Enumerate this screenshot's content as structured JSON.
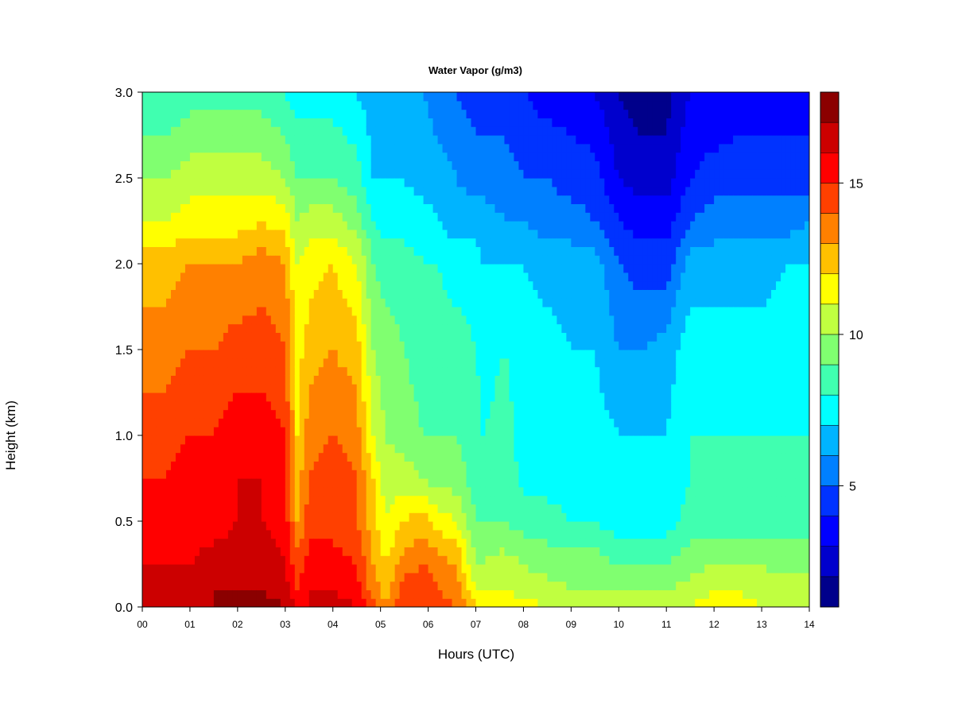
{
  "chart_data": {
    "type": "heatmap",
    "title": "Water Vapor (g/m3)",
    "xlabel": "Hours (UTC)",
    "ylabel": "Height (km)",
    "x_ticks": [
      "00",
      "01",
      "02",
      "03",
      "04",
      "05",
      "06",
      "07",
      "08",
      "09",
      "10",
      "11",
      "12",
      "13",
      "14"
    ],
    "y_ticks": [
      "0.0",
      "0.5",
      "1.0",
      "1.5",
      "2.0",
      "2.5",
      "3.0"
    ],
    "xlim": [
      0,
      14
    ],
    "ylim": [
      0,
      3
    ],
    "colorbar": {
      "ticks": [
        "5",
        "10",
        "15"
      ],
      "tick_values": [
        5,
        10,
        15
      ],
      "range": [
        1,
        18
      ],
      "levels": [
        1,
        2,
        3,
        4,
        5,
        6,
        7,
        8,
        9,
        10,
        11,
        12,
        13,
        14,
        15,
        16,
        17,
        18
      ],
      "colors": [
        "#00008B",
        "#0000CD",
        "#0000FF",
        "#0033FF",
        "#0080FF",
        "#00B4FF",
        "#00FFFF",
        "#40FFB0",
        "#80FF70",
        "#C0FF40",
        "#FFFF00",
        "#FFC000",
        "#FF8000",
        "#FF4000",
        "#FF0000",
        "#CC0000",
        "#8B0000"
      ]
    },
    "grid": false,
    "hours": [
      0,
      0.5,
      1,
      1.5,
      2,
      2.5,
      3,
      3.25,
      3.5,
      4,
      4.5,
      4.85,
      5.1,
      5.5,
      5.9,
      6.2,
      6.6,
      7.0,
      7.15,
      7.6,
      8,
      8.5,
      9,
      9.5,
      10,
      10.5,
      11,
      11.5,
      12,
      12.5,
      13,
      13.5,
      14
    ],
    "heights_km": [
      0.0,
      0.1,
      0.25,
      0.5,
      0.75,
      1.0,
      1.5,
      2.0,
      2.25,
      2.5,
      3.0
    ],
    "values": [
      [
        17,
        16.5,
        16,
        15,
        15,
        14.5,
        13.5,
        12.5,
        11,
        10,
        8
      ],
      [
        17,
        16.5,
        16,
        15,
        15,
        14.5,
        13.5,
        12.5,
        11,
        10,
        8
      ],
      [
        17,
        16.5,
        16,
        15.5,
        15.5,
        15,
        14,
        13,
        11.5,
        10.5,
        8.5
      ],
      [
        17,
        17,
        16.5,
        15.5,
        15.5,
        15,
        14,
        13,
        11.5,
        10.5,
        8.5
      ],
      [
        17.5,
        17,
        16.5,
        16,
        16,
        15.5,
        14.5,
        13,
        11.5,
        10.5,
        8.5
      ],
      [
        17.5,
        17,
        16.5,
        16,
        16,
        15.5,
        14.5,
        13.5,
        12,
        10.5,
        8.5
      ],
      [
        17,
        16.5,
        16,
        15.5,
        15.5,
        15,
        14,
        13,
        11.5,
        10,
        8
      ],
      [
        16,
        15,
        14.5,
        13,
        12.5,
        12,
        11.5,
        11,
        10,
        9,
        7.5
      ],
      [
        16,
        16,
        15.5,
        14.5,
        14,
        13.5,
        12.5,
        11.5,
        10.5,
        9,
        7.5
      ],
      [
        16.5,
        16,
        15.5,
        14.5,
        14.5,
        14,
        13,
        12,
        10.5,
        9,
        7.5
      ],
      [
        16,
        15.5,
        15,
        14,
        14,
        13.5,
        12.5,
        11,
        9.5,
        8.5,
        7
      ],
      [
        14.5,
        13.5,
        13,
        12.5,
        12,
        11,
        10,
        9,
        8,
        7,
        6.5
      ],
      [
        13.5,
        12.5,
        12,
        11,
        10.5,
        10,
        9.5,
        8.5,
        7.5,
        7,
        6.5
      ],
      [
        15,
        14.5,
        13.5,
        12,
        10.5,
        9.5,
        9,
        8.5,
        7.5,
        7,
        6.5
      ],
      [
        15,
        14.5,
        14,
        12.5,
        10,
        9,
        8.5,
        8,
        7.5,
        6.5,
        6
      ],
      [
        14.5,
        14,
        13.5,
        11.5,
        9.5,
        9,
        8.5,
        8,
        7,
        6.5,
        5.5
      ],
      [
        14,
        13.5,
        13,
        11,
        9.5,
        9,
        8.5,
        7.5,
        6.5,
        6,
        5
      ],
      [
        12,
        11,
        10,
        9,
        8.5,
        8.5,
        8,
        7.5,
        6.5,
        5.5,
        4.5
      ],
      [
        11.5,
        11,
        10,
        9,
        8.5,
        8,
        7.5,
        7,
        6.5,
        5.5,
        4.5
      ],
      [
        12,
        11,
        10.5,
        9,
        8.5,
        8.5,
        8,
        7,
        6,
        5.5,
        4.5
      ],
      [
        11.5,
        10.5,
        10,
        8.5,
        7.8,
        7.5,
        7.5,
        7,
        6,
        5,
        4
      ],
      [
        11,
        10.5,
        9.5,
        8.5,
        7.5,
        7.5,
        7.5,
        6.5,
        5.5,
        5,
        3.5
      ],
      [
        11,
        10,
        9.5,
        8,
        7.5,
        7.5,
        7,
        6.5,
        5.5,
        4.5,
        3.5
      ],
      [
        10.5,
        10,
        9.5,
        8,
        7.5,
        7.5,
        7,
        6.5,
        5,
        4.5,
        3
      ],
      [
        10.5,
        10,
        9,
        7.5,
        7,
        7,
        6,
        5,
        4,
        3,
        2
      ],
      [
        10.5,
        10,
        9,
        7.5,
        7,
        7,
        6,
        4.5,
        3.5,
        2.5,
        1.5
      ],
      [
        10.5,
        10,
        9,
        7.5,
        7,
        7,
        6.5,
        4.5,
        3.5,
        2.5,
        1.5
      ],
      [
        11,
        10.5,
        9.5,
        8.5,
        8,
        8,
        7.5,
        6.5,
        5,
        4,
        3
      ],
      [
        11.5,
        11,
        10,
        8.5,
        8,
        8,
        7.5,
        6.5,
        5.5,
        4.5,
        3
      ],
      [
        11.5,
        11,
        10,
        8.5,
        8,
        8,
        7.5,
        6.5,
        5.5,
        4.5,
        3.5
      ],
      [
        11,
        10.5,
        10,
        8.5,
        8,
        8,
        7.5,
        6.5,
        5.5,
        4.5,
        3.5
      ],
      [
        11,
        10.5,
        9.5,
        8.5,
        8,
        8,
        7.5,
        7,
        5.5,
        4.5,
        3.5
      ],
      [
        11,
        10.5,
        9.5,
        8.5,
        8,
        8,
        7.5,
        7,
        6,
        4.5,
        3.5
      ]
    ]
  }
}
